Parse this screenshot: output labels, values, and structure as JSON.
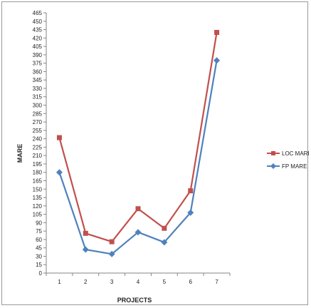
{
  "chart_data": {
    "type": "line",
    "title": "",
    "xlabel": "PROJECTS",
    "ylabel": "MARE",
    "categories": [
      "1",
      "2",
      "3",
      "4",
      "5",
      "6",
      "7"
    ],
    "ylim": [
      0,
      465
    ],
    "ytick_step": 15,
    "yticks": [
      "0",
      "15",
      "30",
      "45",
      "60",
      "75",
      "90",
      "105",
      "120",
      "135",
      "150",
      "165",
      "180",
      "195",
      "210",
      "225",
      "240",
      "255",
      "270",
      "285",
      "300",
      "315",
      "330",
      "345",
      "360",
      "375",
      "390",
      "405",
      "420",
      "435",
      "450",
      "465"
    ],
    "grid": false,
    "legend_position": "right",
    "series": [
      {
        "name": "LOC MARE",
        "color": "#c0504d",
        "marker": "square",
        "values": [
          242,
          71,
          56,
          115,
          80,
          147,
          430
        ]
      },
      {
        "name": "FP MARE",
        "color": "#4f81bd",
        "marker": "diamond",
        "values": [
          180,
          42,
          34,
          73,
          55,
          108,
          380
        ]
      }
    ]
  }
}
